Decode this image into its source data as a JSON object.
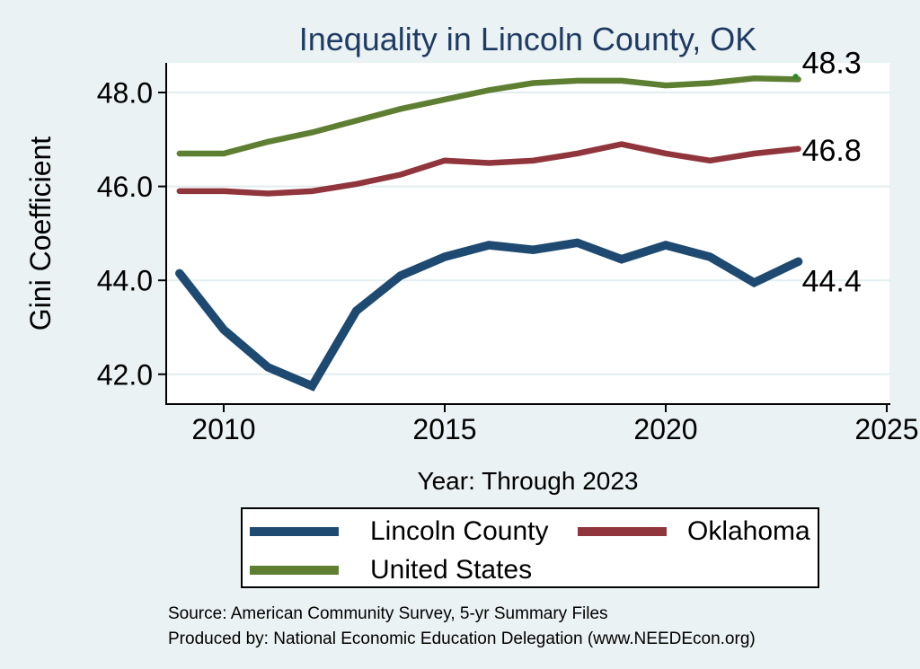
{
  "title": "Inequality in Lincoln County, OK",
  "colors": {
    "background": "#eaf2f3",
    "plot_background": "#ffffff",
    "gridline": "#e2edef",
    "axis": "#000000",
    "title_text": "#1f3b63",
    "tick_text": "#000000",
    "lincoln_county_line": "#1e4a71",
    "oklahoma_line": "#90353b",
    "united_states_line": "#5e7e32",
    "end_dot": "#2e8c2e"
  },
  "chart_data": {
    "type": "line",
    "title": "Inequality in Lincoln County, OK",
    "xlabel": "Year: Through 2023",
    "ylabel": "Gini Coefficient",
    "x": [
      2009,
      2010,
      2011,
      2012,
      2013,
      2014,
      2015,
      2016,
      2017,
      2018,
      2019,
      2020,
      2021,
      2022,
      2023
    ],
    "series": [
      {
        "name": "Lincoln County",
        "color": "#1e4a71",
        "line_width": 9.5,
        "end_label": "44.4",
        "label_dy": 21,
        "end_dot": false,
        "values": [
          44.15,
          42.95,
          42.15,
          41.75,
          43.35,
          44.1,
          44.5,
          44.75,
          44.65,
          44.8,
          44.45,
          44.75,
          44.5,
          43.95,
          44.4
        ]
      },
      {
        "name": "Oklahoma",
        "color": "#90353b",
        "line_width": 6.5,
        "end_label": "46.8",
        "label_dy": 1,
        "end_dot": false,
        "values": [
          45.9,
          45.9,
          45.85,
          45.9,
          46.05,
          46.25,
          46.55,
          46.5,
          46.55,
          46.7,
          46.9,
          46.7,
          46.55,
          46.7,
          46.8
        ]
      },
      {
        "name": "United States",
        "color": "#5e7e32",
        "line_width": 6.5,
        "end_label": "48.3",
        "label_dy": -19,
        "end_dot": true,
        "values": [
          46.7,
          46.7,
          46.95,
          47.15,
          47.4,
          47.65,
          47.85,
          48.05,
          48.2,
          48.25,
          48.25,
          48.15,
          48.2,
          48.3,
          48.28
        ]
      }
    ],
    "y_ticks": [
      42.0,
      44.0,
      46.0,
      48.0
    ],
    "y_tick_labels": [
      "42.0",
      "44.0",
      "46.0",
      "48.0"
    ],
    "x_ticks": [
      2010,
      2015,
      2020,
      2025
    ],
    "x_tick_labels": [
      "2010",
      "2015",
      "2020",
      "2025"
    ],
    "ylim": [
      41.35,
      48.65
    ],
    "xlim": [
      2008.7,
      2025.05
    ],
    "grid": "horizontal-only",
    "legend_position": "bottom"
  },
  "legend": {
    "items": [
      {
        "label": "Lincoln County"
      },
      {
        "label": "Oklahoma"
      },
      {
        "label": "United States"
      }
    ]
  },
  "footer": {
    "source_line": "Source: American Community Survey, 5-yr Summary Files",
    "produced_line": "Produced by: National Economic Education Delegation (www.NEEDEcon.org)"
  }
}
